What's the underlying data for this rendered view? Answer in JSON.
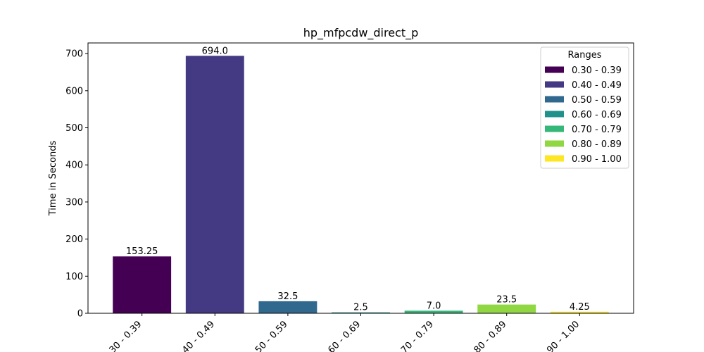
{
  "chart_data": {
    "type": "bar",
    "title": "hp_mfpcdw_direct_p",
    "xlabel": "",
    "ylabel": "Time in Seconds",
    "categories": [
      "0.30 - 0.39",
      "0.40 - 0.49",
      "0.50 - 0.59",
      "0.60 - 0.69",
      "0.70 - 0.79",
      "0.80 - 0.89",
      "0.90 - 1.00"
    ],
    "values": [
      153.25,
      694.0,
      32.5,
      2.5,
      7.0,
      23.5,
      4.25
    ],
    "value_labels": [
      "153.25",
      "694.0",
      "32.5",
      "2.5",
      "7.0",
      "23.5",
      "4.25"
    ],
    "colors": [
      "#440154",
      "#443983",
      "#31688e",
      "#21918c",
      "#35b779",
      "#90d743",
      "#fde725"
    ],
    "ylim": [
      0,
      728.7
    ],
    "yticks": [
      0,
      100,
      200,
      300,
      400,
      500,
      600,
      700
    ],
    "grid": false,
    "legend": {
      "title": "Ranges",
      "placement": "top-right",
      "entries": [
        "0.30 - 0.39",
        "0.40 - 0.49",
        "0.50 - 0.59",
        "0.60 - 0.69",
        "0.70 - 0.79",
        "0.80 - 0.89",
        "0.90 - 1.00"
      ]
    }
  }
}
